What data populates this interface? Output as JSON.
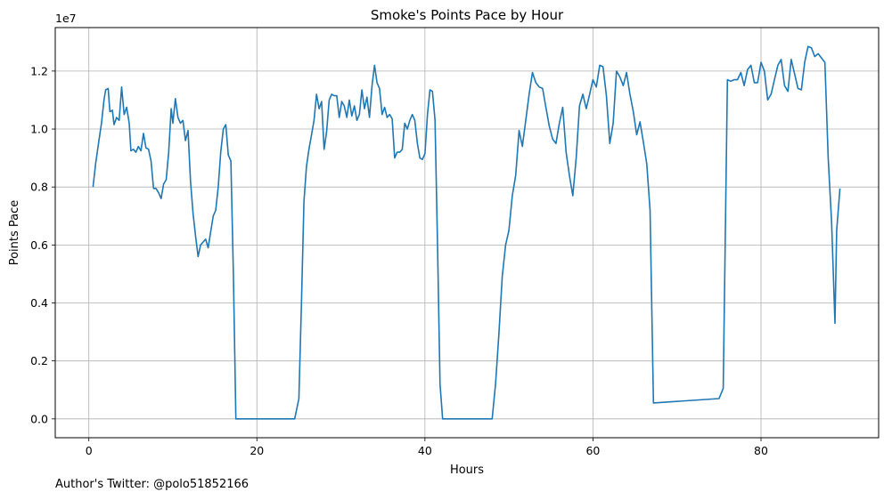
{
  "chart_data": {
    "type": "line",
    "title": "Smoke's Points Pace by Hour",
    "xlabel": "Hours",
    "ylabel": "Points Pace",
    "y_offset_label": "1e7",
    "xlim": [
      -4,
      94
    ],
    "ylim": [
      -650000,
      13500000
    ],
    "x_ticks": [
      0,
      20,
      40,
      60,
      80
    ],
    "x_tick_labels": [
      "0",
      "20",
      "40",
      "60",
      "80"
    ],
    "y_ticks": [
      0,
      2000000,
      4000000,
      6000000,
      8000000,
      10000000,
      12000000
    ],
    "y_tick_labels": [
      "0.0",
      "0.2",
      "0.4",
      "0.6",
      "0.8",
      "1.0",
      "1.2"
    ],
    "grid": true,
    "series": [
      {
        "color": "#1f77b4",
        "x": [
          0.5,
          0.8,
          1.2,
          1.5,
          1.8,
          2.0,
          2.3,
          2.5,
          2.8,
          3.0,
          3.3,
          3.6,
          3.9,
          4.2,
          4.5,
          4.8,
          5.0,
          5.3,
          5.6,
          5.9,
          6.2,
          6.5,
          6.8,
          7.1,
          7.4,
          7.7,
          8.0,
          8.3,
          8.6,
          8.9,
          9.2,
          9.5,
          9.8,
          10.0,
          10.3,
          10.6,
          10.9,
          11.2,
          11.5,
          11.8,
          12.1,
          12.4,
          12.7,
          13.0,
          13.3,
          13.6,
          13.9,
          14.2,
          14.5,
          14.8,
          15.1,
          15.4,
          15.7,
          16.0,
          16.3,
          16.6,
          16.9,
          17.2,
          17.5,
          20.0,
          24.0,
          24.5,
          25.0,
          25.3,
          25.6,
          25.9,
          26.2,
          26.5,
          26.8,
          27.1,
          27.4,
          27.7,
          28.0,
          28.3,
          28.6,
          28.9,
          29.2,
          29.5,
          29.8,
          30.1,
          30.4,
          30.7,
          31.0,
          31.3,
          31.6,
          31.9,
          32.2,
          32.5,
          32.8,
          33.1,
          33.4,
          33.7,
          34.0,
          34.3,
          34.6,
          34.9,
          35.2,
          35.5,
          35.8,
          36.1,
          36.4,
          36.7,
          37.0,
          37.3,
          37.6,
          37.9,
          38.2,
          38.5,
          38.8,
          39.1,
          39.4,
          39.7,
          40.0,
          40.3,
          40.6,
          40.9,
          41.2,
          41.5,
          41.8,
          42.1,
          42.4,
          45.0,
          48.0,
          48.4,
          48.8,
          49.2,
          49.6,
          50.0,
          50.4,
          50.8,
          51.2,
          51.6,
          52.0,
          52.4,
          52.8,
          53.2,
          53.6,
          54.0,
          54.4,
          54.8,
          55.2,
          55.6,
          56.0,
          56.4,
          56.8,
          57.2,
          57.6,
          58.0,
          58.4,
          58.8,
          59.2,
          59.6,
          60.0,
          60.4,
          60.8,
          61.2,
          61.6,
          62.0,
          62.4,
          62.8,
          63.2,
          63.6,
          64.0,
          64.4,
          64.8,
          65.2,
          65.6,
          66.0,
          66.4,
          66.8,
          67.2,
          75.0,
          75.5,
          76.0,
          76.4,
          76.8,
          77.2,
          77.6,
          78.0,
          78.4,
          78.8,
          79.2,
          79.6,
          80.0,
          80.4,
          80.8,
          81.2,
          81.6,
          82.0,
          82.4,
          82.8,
          83.2,
          83.6,
          84.0,
          84.4,
          84.8,
          85.2,
          85.6,
          86.0,
          86.4,
          86.8,
          87.2,
          87.6,
          88.0,
          88.4,
          88.8,
          89.0,
          89.4
        ],
        "y": [
          8000000,
          8800000,
          9600000,
          10200000,
          11000000,
          11350000,
          11400000,
          10600000,
          10650000,
          10150000,
          10400000,
          10300000,
          11450000,
          10500000,
          10750000,
          10200000,
          9250000,
          9300000,
          9200000,
          9400000,
          9250000,
          9850000,
          9350000,
          9300000,
          8900000,
          7950000,
          7950000,
          7800000,
          7600000,
          8100000,
          8250000,
          9200000,
          10700000,
          10200000,
          11050000,
          10400000,
          10200000,
          10300000,
          9600000,
          9950000,
          8200000,
          7100000,
          6300000,
          5600000,
          6000000,
          6100000,
          6200000,
          5900000,
          6450000,
          7000000,
          7200000,
          8000000,
          9200000,
          10000000,
          10150000,
          9100000,
          8900000,
          5000000,
          0,
          0,
          0,
          0,
          700000,
          4000000,
          7500000,
          8700000,
          9300000,
          9800000,
          10300000,
          11200000,
          10700000,
          10950000,
          9300000,
          9900000,
          11000000,
          11200000,
          11150000,
          11150000,
          10400000,
          10950000,
          10800000,
          10400000,
          11000000,
          10450000,
          10800000,
          10300000,
          10500000,
          11350000,
          10700000,
          11100000,
          10400000,
          11500000,
          12200000,
          11600000,
          11400000,
          10500000,
          10750000,
          10400000,
          10500000,
          10350000,
          9000000,
          9200000,
          9200000,
          9300000,
          10200000,
          10000000,
          10300000,
          10500000,
          10300000,
          9500000,
          9000000,
          8950000,
          9150000,
          10500000,
          11350000,
          11300000,
          10300000,
          6000000,
          1200000,
          0,
          0,
          0,
          0,
          1200000,
          2900000,
          4900000,
          6000000,
          6500000,
          7700000,
          8400000,
          9950000,
          9400000,
          10300000,
          11200000,
          11950000,
          11600000,
          11450000,
          11400000,
          10750000,
          10100000,
          9650000,
          9500000,
          10200000,
          10750000,
          9200000,
          8400000,
          7700000,
          9000000,
          10800000,
          11200000,
          10700000,
          11200000,
          11700000,
          11450000,
          12200000,
          12150000,
          11150000,
          9500000,
          10200000,
          12000000,
          11800000,
          11500000,
          11950000,
          11200000,
          10600000,
          9800000,
          10250000,
          9550000,
          8800000,
          7200000,
          550000,
          700000,
          1050000,
          11700000,
          11650000,
          11700000,
          11700000,
          11950000,
          11500000,
          12050000,
          12200000,
          11600000,
          11600000,
          12300000,
          12000000,
          11000000,
          11200000,
          11700000,
          12200000,
          12400000,
          11500000,
          11300000,
          12400000,
          11900000,
          11400000,
          11350000,
          12300000,
          12850000,
          12800000,
          12500000,
          12600000,
          12450000,
          12300000,
          9000000,
          6800000,
          3300000,
          6500000,
          7950000
        ]
      }
    ]
  },
  "footer": {
    "text": "Author's Twitter: @polo51852166"
  }
}
